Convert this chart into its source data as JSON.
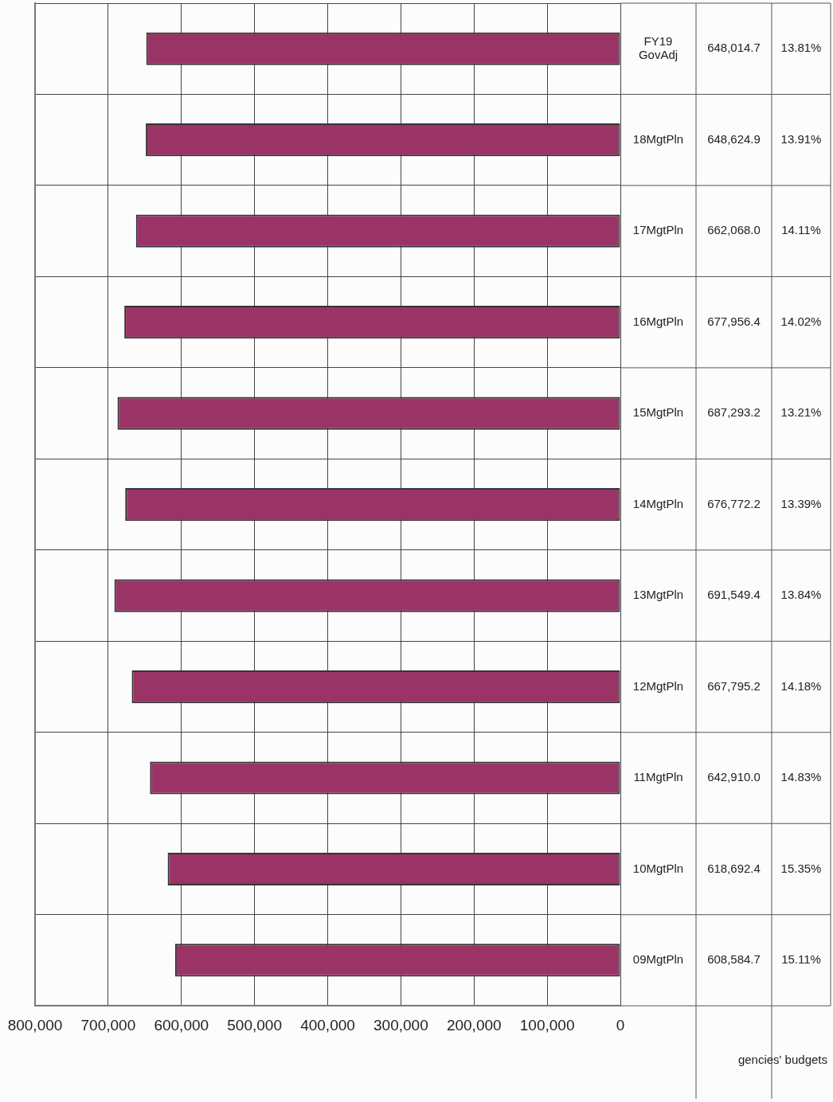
{
  "chart_data": {
    "type": "bar",
    "orientation": "horizontal",
    "categories": [
      "FY19 GovAdj",
      "18MgtPln",
      "17MgtPln",
      "16MgtPln",
      "15MgtPln",
      "14MgtPln",
      "13MgtPln",
      "12MgtPln",
      "11MgtPln",
      "10MgtPln",
      "09MgtPln"
    ],
    "values": [
      648014.7,
      648624.9,
      662068.0,
      677956.4,
      687293.2,
      676772.2,
      691549.4,
      667795.2,
      642910.0,
      618692.4,
      608584.7
    ],
    "value_labels": [
      "648,014.7",
      "648,624.9",
      "662,068.0",
      "677,956.4",
      "687,293.2",
      "676,772.2",
      "691,549.4",
      "667,795.2",
      "642,910.0",
      "618,692.4",
      "608,584.7"
    ],
    "color": "#9b3466",
    "xlim": [
      800000,
      0
    ],
    "xticks": [
      {
        "value": 0,
        "label": "0"
      },
      {
        "value": 100000,
        "label": "100,000"
      },
      {
        "value": 200000,
        "label": "200,000"
      },
      {
        "value": 300000,
        "label": "300,000"
      },
      {
        "value": 400000,
        "label": "400,000"
      },
      {
        "value": 500000,
        "label": "500,000"
      },
      {
        "value": 600000,
        "label": "600,000"
      },
      {
        "value": 700000,
        "label": "700,000"
      },
      {
        "value": 800000,
        "label": "800,000"
      }
    ],
    "grid": true,
    "annotations": [
      "gencies' budgets",
      "13.81%",
      "13.91%",
      "14.11%",
      "14.02%",
      "13.21%",
      "13.39%",
      "13.84%",
      "14.18%",
      "14.83%",
      "15.35%",
      "15.11%"
    ]
  }
}
